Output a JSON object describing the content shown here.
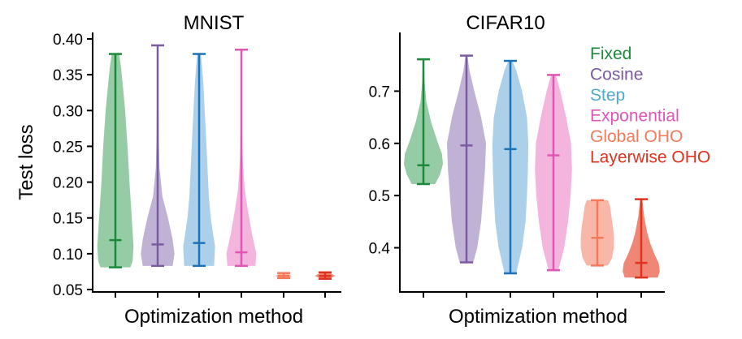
{
  "chart_data": [
    {
      "type": "violin",
      "title": "MNIST",
      "xlabel": "Optimization method",
      "ylabel": "Test loss",
      "ylim": [
        0.05,
        0.4
      ],
      "yticks": [
        0.05,
        0.1,
        0.15,
        0.2,
        0.25,
        0.3,
        0.35,
        0.4
      ],
      "ytick_labels": [
        "0.05",
        "0.10",
        "0.15",
        "0.20",
        "0.25",
        "0.30",
        "0.35",
        "0.40"
      ],
      "series": [
        {
          "name": "Fixed",
          "min": 0.081,
          "max": 0.379,
          "median": 0.119,
          "profile": [
            [
              0.081,
              0.8
            ],
            [
              0.09,
              0.92
            ],
            [
              0.11,
              0.97
            ],
            [
              0.13,
              0.92
            ],
            [
              0.16,
              0.85
            ],
            [
              0.2,
              0.75
            ],
            [
              0.25,
              0.65
            ],
            [
              0.3,
              0.52
            ],
            [
              0.34,
              0.38
            ],
            [
              0.36,
              0.3
            ],
            [
              0.379,
              0.2
            ]
          ]
        },
        {
          "name": "Cosine",
          "min": 0.083,
          "max": 0.391,
          "median": 0.113,
          "profile": [
            [
              0.083,
              0.8
            ],
            [
              0.1,
              0.9
            ],
            [
              0.12,
              0.8
            ],
            [
              0.15,
              0.55
            ],
            [
              0.18,
              0.25
            ],
            [
              0.22,
              0.1
            ],
            [
              0.26,
              0.06
            ],
            [
              0.32,
              0.04
            ],
            [
              0.391,
              0.02
            ]
          ]
        },
        {
          "name": "Step",
          "min": 0.083,
          "max": 0.379,
          "median": 0.115,
          "profile": [
            [
              0.083,
              0.8
            ],
            [
              0.11,
              0.85
            ],
            [
              0.15,
              0.62
            ],
            [
              0.18,
              0.52
            ],
            [
              0.22,
              0.45
            ],
            [
              0.26,
              0.38
            ],
            [
              0.3,
              0.3
            ],
            [
              0.34,
              0.22
            ],
            [
              0.379,
              0.1
            ]
          ]
        },
        {
          "name": "Exponential",
          "min": 0.083,
          "max": 0.385,
          "median": 0.102,
          "profile": [
            [
              0.083,
              0.75
            ],
            [
              0.1,
              0.8
            ],
            [
              0.13,
              0.55
            ],
            [
              0.16,
              0.35
            ],
            [
              0.19,
              0.18
            ],
            [
              0.23,
              0.08
            ],
            [
              0.28,
              0.04
            ],
            [
              0.33,
              0.02
            ],
            [
              0.385,
              0.01
            ]
          ]
        },
        {
          "name": "Global OHO",
          "min": 0.066,
          "max": 0.073,
          "median": 0.069,
          "profile": [
            [
              0.066,
              0.15
            ],
            [
              0.069,
              0.45
            ],
            [
              0.073,
              0.15
            ]
          ]
        },
        {
          "name": "Layerwise OHO",
          "min": 0.065,
          "max": 0.074,
          "median": 0.069,
          "profile": [
            [
              0.065,
              0.2
            ],
            [
              0.069,
              0.55
            ],
            [
              0.074,
              0.2
            ]
          ]
        }
      ]
    },
    {
      "type": "violin",
      "title": "CIFAR10",
      "xlabel": "Optimization method",
      "ylabel": "",
      "ylim": [
        0.32,
        0.8
      ],
      "yticks": [
        0.4,
        0.5,
        0.6,
        0.7
      ],
      "ytick_labels": [
        "0.4",
        "0.5",
        "0.6",
        "0.7"
      ],
      "series": [
        {
          "name": "Fixed",
          "min": 0.522,
          "max": 0.761,
          "median": 0.558,
          "profile": [
            [
              0.522,
              0.6
            ],
            [
              0.54,
              0.85
            ],
            [
              0.56,
              1.0
            ],
            [
              0.58,
              0.95
            ],
            [
              0.6,
              0.75
            ],
            [
              0.64,
              0.4
            ],
            [
              0.68,
              0.15
            ],
            [
              0.72,
              0.06
            ],
            [
              0.761,
              0.02
            ]
          ]
        },
        {
          "name": "Cosine",
          "min": 0.372,
          "max": 0.768,
          "median": 0.596,
          "profile": [
            [
              0.372,
              0.35
            ],
            [
              0.4,
              0.55
            ],
            [
              0.45,
              0.75
            ],
            [
              0.5,
              0.85
            ],
            [
              0.55,
              0.95
            ],
            [
              0.6,
              1.0
            ],
            [
              0.65,
              0.75
            ],
            [
              0.7,
              0.4
            ],
            [
              0.74,
              0.15
            ],
            [
              0.768,
              0.05
            ]
          ]
        },
        {
          "name": "Step",
          "min": 0.351,
          "max": 0.758,
          "median": 0.589,
          "profile": [
            [
              0.351,
              0.3
            ],
            [
              0.4,
              0.6
            ],
            [
              0.45,
              0.78
            ],
            [
              0.5,
              0.85
            ],
            [
              0.55,
              0.9
            ],
            [
              0.6,
              0.92
            ],
            [
              0.65,
              0.85
            ],
            [
              0.7,
              0.6
            ],
            [
              0.74,
              0.3
            ],
            [
              0.758,
              0.1
            ]
          ]
        },
        {
          "name": "Exponential",
          "min": 0.357,
          "max": 0.731,
          "median": 0.577,
          "profile": [
            [
              0.357,
              0.25
            ],
            [
              0.4,
              0.55
            ],
            [
              0.45,
              0.75
            ],
            [
              0.5,
              0.88
            ],
            [
              0.55,
              0.95
            ],
            [
              0.6,
              0.9
            ],
            [
              0.65,
              0.65
            ],
            [
              0.7,
              0.35
            ],
            [
              0.731,
              0.12
            ]
          ]
        },
        {
          "name": "Global OHO",
          "min": 0.366,
          "max": 0.491,
          "median": 0.419,
          "profile": [
            [
              0.366,
              0.55
            ],
            [
              0.38,
              0.75
            ],
            [
              0.4,
              0.85
            ],
            [
              0.42,
              0.85
            ],
            [
              0.44,
              0.8
            ],
            [
              0.46,
              0.72
            ],
            [
              0.48,
              0.65
            ],
            [
              0.491,
              0.55
            ]
          ]
        },
        {
          "name": "Layerwise OHO",
          "min": 0.343,
          "max": 0.493,
          "median": 0.371,
          "profile": [
            [
              0.343,
              0.85
            ],
            [
              0.355,
              0.95
            ],
            [
              0.37,
              0.9
            ],
            [
              0.39,
              0.65
            ],
            [
              0.41,
              0.45
            ],
            [
              0.43,
              0.3
            ],
            [
              0.46,
              0.15
            ],
            [
              0.493,
              0.05
            ]
          ]
        }
      ]
    }
  ],
  "legend": {
    "position": "top-right",
    "items": [
      {
        "label": "Fixed",
        "color": "#1a8a3a"
      },
      {
        "label": "Cosine",
        "color": "#7a5aa0"
      },
      {
        "label": "Step",
        "color": "#4ea9d0"
      },
      {
        "label": "Exponential",
        "color": "#e055b5"
      },
      {
        "label": "Global OHO",
        "color": "#f47a5a"
      },
      {
        "label": "Layerwise OHO",
        "color": "#e0321e"
      }
    ]
  },
  "colors": {
    "Fixed": {
      "stroke": "#1a8a3a",
      "fill": "#8fc9a0"
    },
    "Cosine": {
      "stroke": "#7a5aa0",
      "fill": "#bdaed3"
    },
    "Step": {
      "stroke": "#1c72b8",
      "fill": "#a9cde9"
    },
    "Exponential": {
      "stroke": "#e055b5",
      "fill": "#f2b0dc"
    },
    "Global OHO": {
      "stroke": "#f47a5a",
      "fill": "#f8b3a2"
    },
    "Layerwise OHO": {
      "stroke": "#e0321e",
      "fill": "#ef7f6e"
    }
  }
}
